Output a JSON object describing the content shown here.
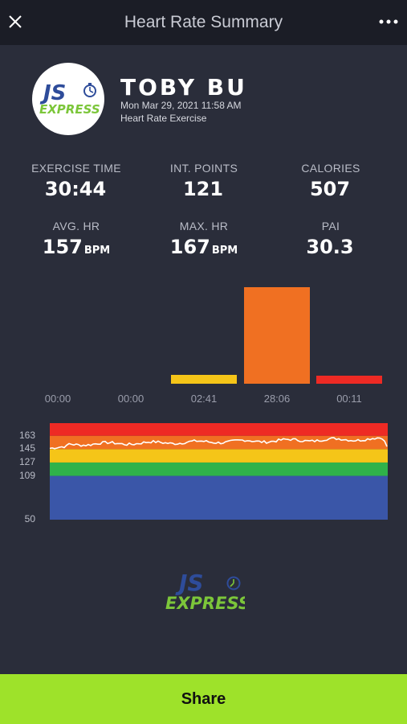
{
  "header": {
    "title": "Heart Rate Summary",
    "close_icon": "close-icon",
    "more_icon": "more-horizontal-icon"
  },
  "profile": {
    "name": "TOBY BU",
    "date": "Mon Mar 29, 2021 11:58 AM",
    "workout_type": "Heart Rate Exercise",
    "logo_letters": "JS",
    "logo_word": "EXPRESS"
  },
  "stats": [
    {
      "label": "EXERCISE TIME",
      "value": "30:44",
      "unit": ""
    },
    {
      "label": "INT. POINTS",
      "value": "121",
      "unit": ""
    },
    {
      "label": "CALORIES",
      "value": "507",
      "unit": ""
    },
    {
      "label": "AVG. HR",
      "value": "157",
      "unit": "BPM"
    },
    {
      "label": "MAX. HR",
      "value": "167",
      "unit": "BPM"
    },
    {
      "label": "PAI",
      "value": "30.3",
      "unit": ""
    }
  ],
  "zone_time_chart": {
    "type": "bar",
    "categories": [
      "00:00",
      "00:00",
      "02:41",
      "28:06",
      "00:11"
    ],
    "seconds": [
      0,
      0,
      161,
      1686,
      11
    ],
    "colors": [
      "#3a56a8",
      "#2fb24a",
      "#f5c518",
      "#f07022",
      "#ee2a24"
    ]
  },
  "hr_zone_chart": {
    "type": "line",
    "y_ticks": [
      "163",
      "145",
      "127",
      "109",
      "50"
    ],
    "zone_bounds": [
      50,
      109,
      127,
      145,
      163,
      180
    ],
    "zone_colors": [
      "#3a56a8",
      "#2fb24a",
      "#f5c518",
      "#f07022",
      "#ee2a24"
    ],
    "line_color": "#ffffff"
  },
  "footer_logo": {
    "letters": "JS",
    "word": "EXPRESS"
  },
  "share_button": {
    "label": "Share"
  },
  "colors": {
    "background": "#2a2d3a",
    "header": "#1b1d26",
    "accent_green": "#9ee22a",
    "logo_blue": "#2e4c9a",
    "logo_green": "#7cc63a"
  }
}
